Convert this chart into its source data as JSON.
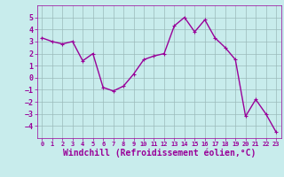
{
  "x": [
    0,
    1,
    2,
    3,
    4,
    5,
    6,
    7,
    8,
    9,
    10,
    11,
    12,
    13,
    14,
    15,
    16,
    17,
    18,
    19,
    20,
    21,
    22,
    23
  ],
  "y": [
    3.3,
    3.0,
    2.8,
    3.0,
    1.4,
    2.0,
    -0.8,
    -1.1,
    -0.7,
    0.3,
    1.5,
    1.8,
    2.0,
    4.3,
    5.0,
    3.8,
    4.8,
    3.3,
    2.5,
    1.5,
    -3.2,
    -1.8,
    -3.0,
    -4.5
  ],
  "line_color": "#990099",
  "marker": "+",
  "marker_size": 3,
  "bg_color": "#c8ecec",
  "grid_color": "#9bbaba",
  "xlabel": "Windchill (Refroidissement éolien,°C)",
  "xlabel_color": "#990099",
  "tick_color": "#990099",
  "ylim": [
    -5,
    6
  ],
  "xlim": [
    -0.5,
    23.5
  ],
  "yticks": [
    -4,
    -3,
    -2,
    -1,
    0,
    1,
    2,
    3,
    4,
    5
  ],
  "xticks": [
    0,
    1,
    2,
    3,
    4,
    5,
    6,
    7,
    8,
    9,
    10,
    11,
    12,
    13,
    14,
    15,
    16,
    17,
    18,
    19,
    20,
    21,
    22,
    23
  ],
  "line_width": 1.0,
  "xtick_fontsize": 5.0,
  "ytick_fontsize": 6.0,
  "xlabel_fontsize": 7.0
}
